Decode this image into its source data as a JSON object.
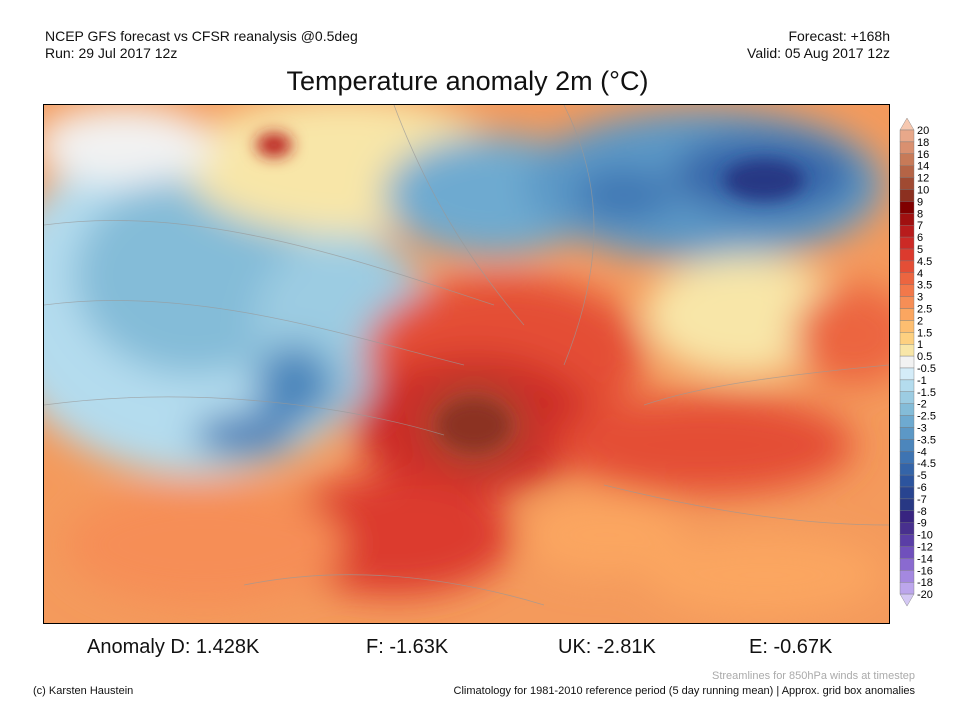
{
  "header": {
    "model_line": "NCEP GFS forecast vs CFSR reanalysis @0.5deg",
    "run_line": "Run: 29 Jul 2017 12z",
    "forecast_line": "Forecast: +168h",
    "valid_line": "Valid: 05 Aug 2017 12z",
    "title": "Temperature anomaly 2m (°C)"
  },
  "colorbar": {
    "labels": [
      "20",
      "18",
      "16",
      "14",
      "12",
      "10",
      "9",
      "8",
      "7",
      "6",
      "5",
      "4.5",
      "4",
      "3.5",
      "3",
      "2.5",
      "2",
      "1.5",
      "1",
      "0.5",
      "-0.5",
      "-1",
      "-1.5",
      "-2",
      "-2.5",
      "-3",
      "-3.5",
      "-4",
      "-4.5",
      "-5",
      "-6",
      "-7",
      "-8",
      "-9",
      "-10",
      "-12",
      "-14",
      "-16",
      "-18",
      "-20"
    ],
    "colors": [
      "#f6c8b0",
      "#e8a88a",
      "#d99070",
      "#c77a58",
      "#b56446",
      "#a04a32",
      "#8c3020",
      "#800000",
      "#a01010",
      "#b81c1c",
      "#cc2a26",
      "#dc3a2e",
      "#e44e36",
      "#ec6540",
      "#f2784a",
      "#f68e56",
      "#fba660",
      "#fdbe70",
      "#fdd080",
      "#f8e6a8",
      "#f2f2f2",
      "#d4ecf8",
      "#b4dcee",
      "#9ccce2",
      "#84bcd8",
      "#6eaad0",
      "#5c98c6",
      "#4c86bc",
      "#3e74b2",
      "#3464a8",
      "#2c549e",
      "#284490",
      "#283884",
      "#382480",
      "#48308e",
      "#5a3ea6",
      "#7050bc",
      "#8a6ad0",
      "#a488e0",
      "#bca6ec",
      "#d4c8f4"
    ]
  },
  "anomalies": {
    "d": "Anomaly D: 1.428K",
    "f": "F: -1.63K",
    "uk": "UK: -2.81K",
    "e": "E: -0.67K"
  },
  "footer": {
    "credit": "(c) Karsten Haustein",
    "streamlines_note": "Streamlines for 850hPa winds at timestep",
    "climatology_note": "Climatology for 1981-2010 reference period (5 day running mean) | Approx. grid box anomalies"
  }
}
